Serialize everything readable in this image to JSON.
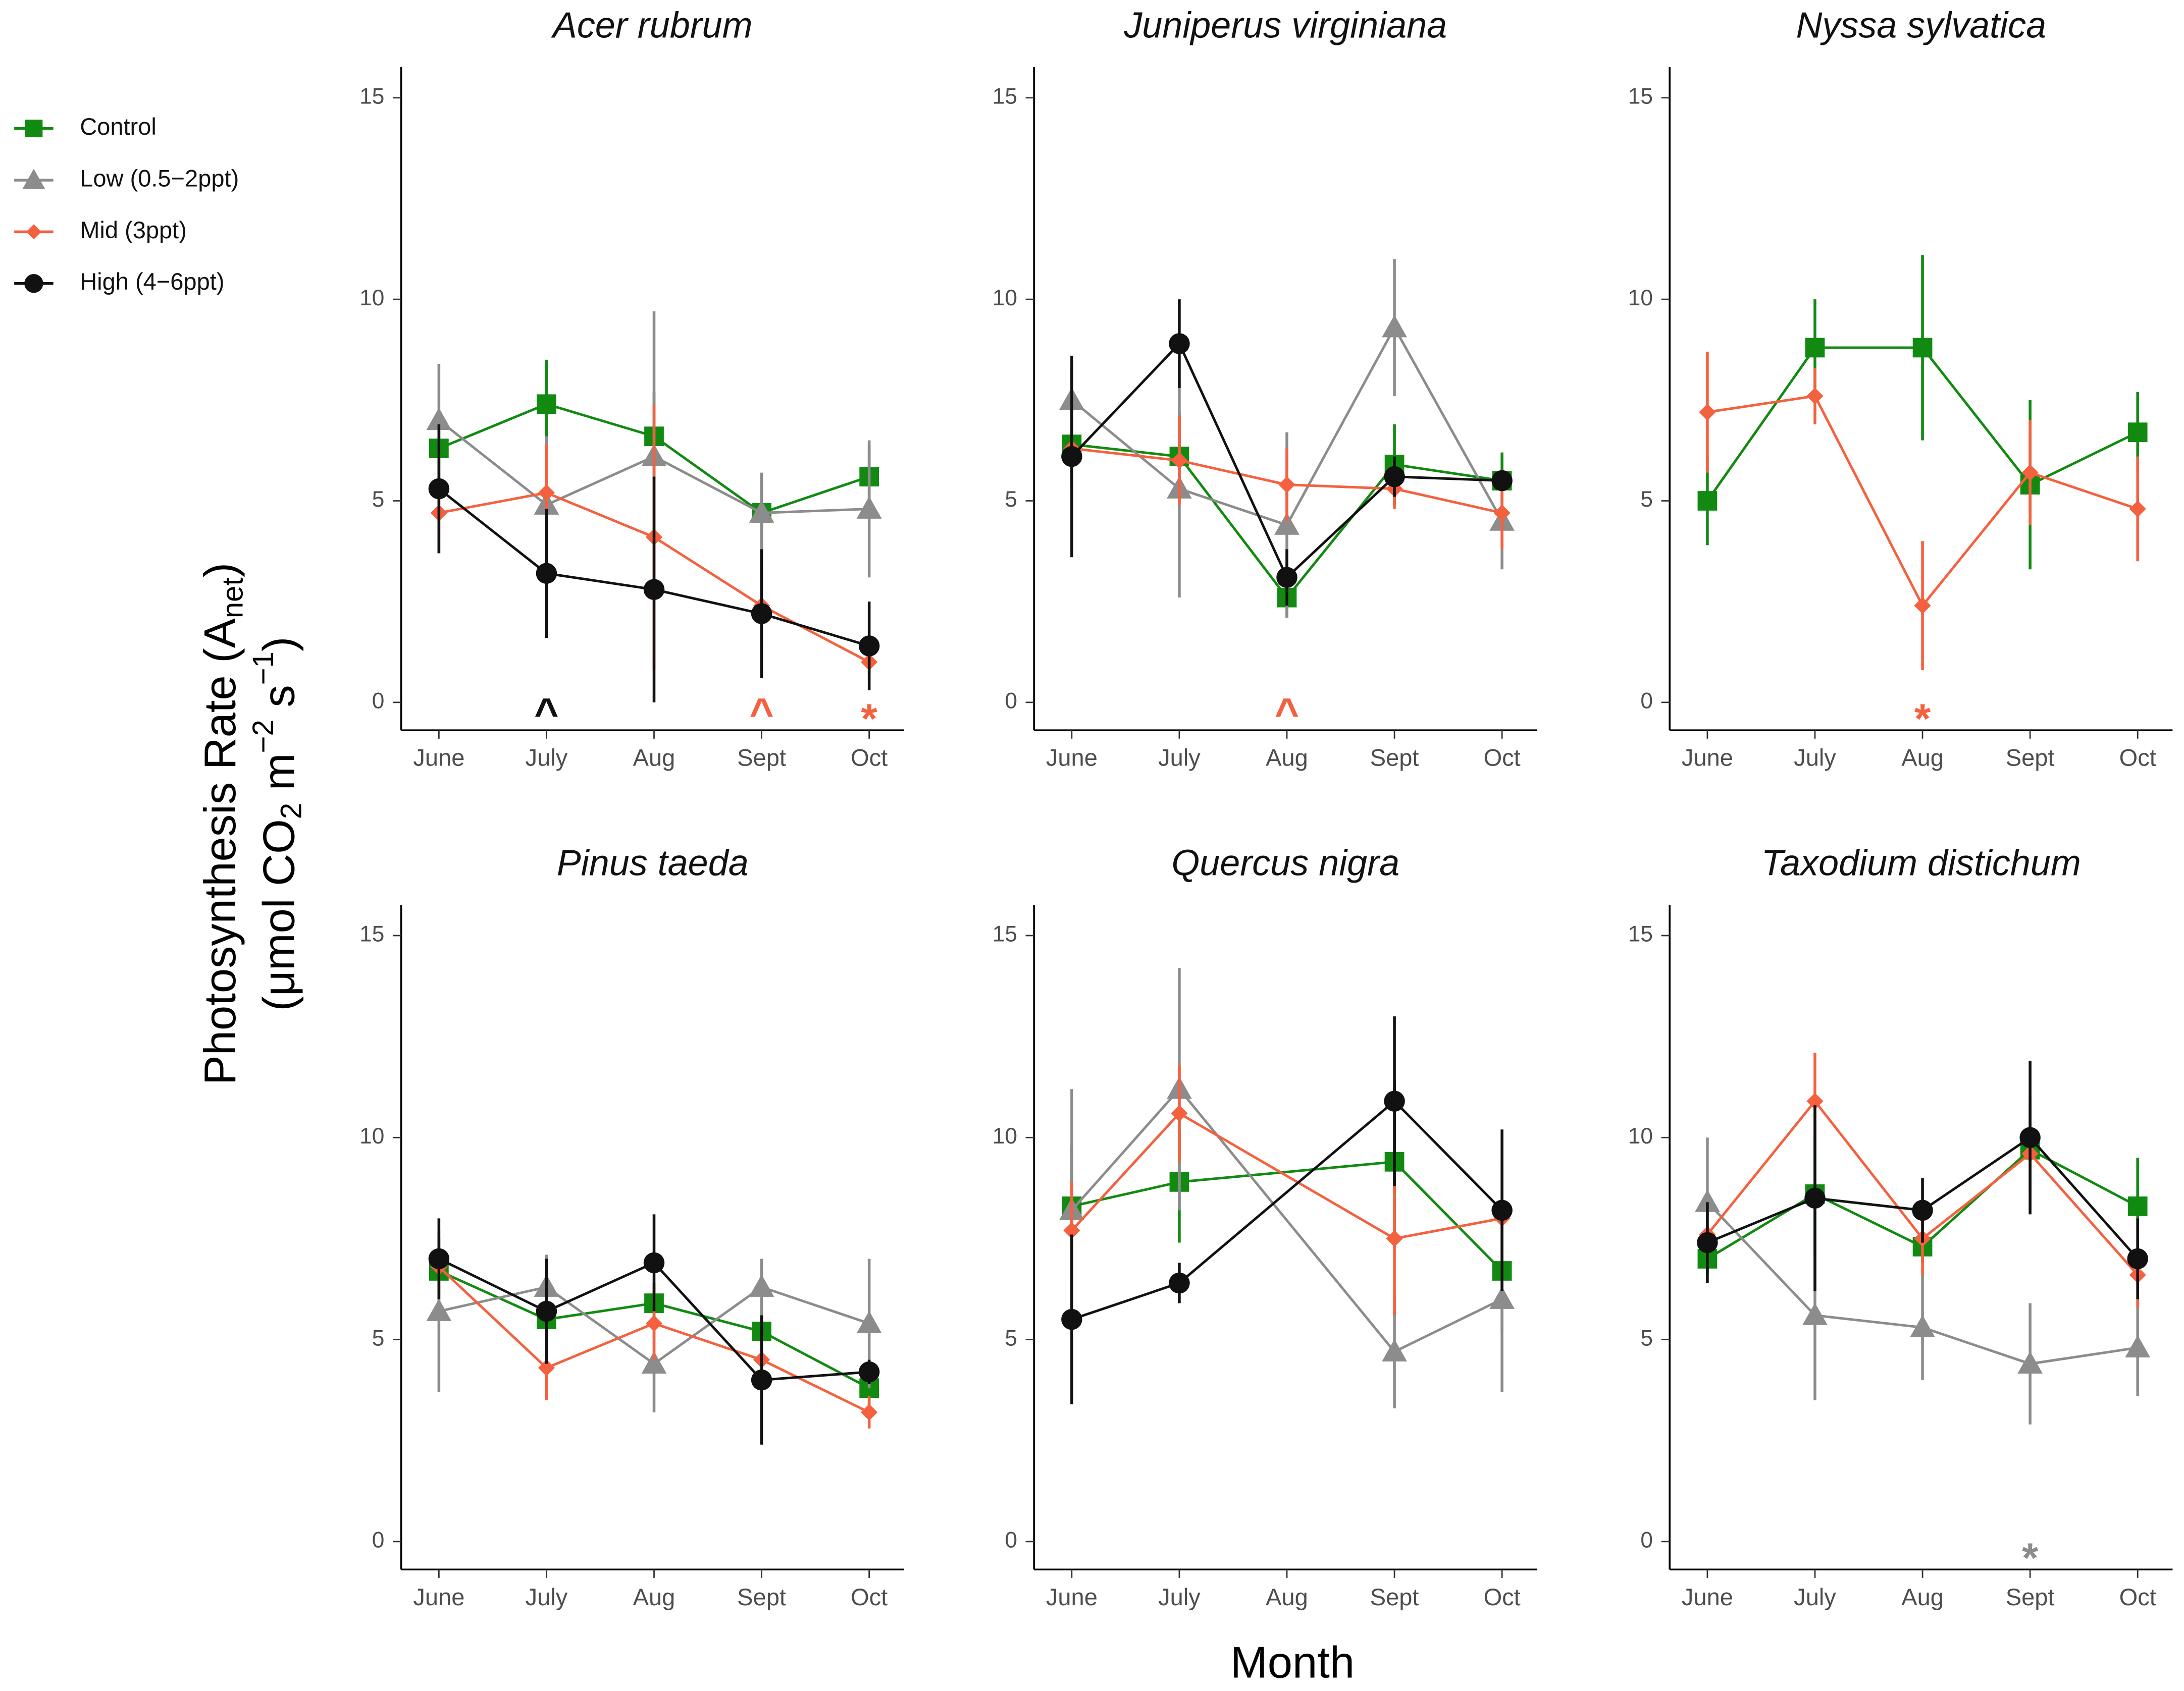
{
  "legend": {
    "series": [
      {
        "name": "Control",
        "color": "#128a12",
        "marker": "square"
      },
      {
        "name": "Low (0.5−2ppt)",
        "color": "#8c8c8c",
        "marker": "triangle"
      },
      {
        "name": "Mid (3ppt)",
        "color": "#f4613f",
        "marker": "diamond"
      },
      {
        "name": "High (4−6ppt)",
        "color": "#111111",
        "marker": "circle"
      }
    ]
  },
  "ylabel": {
    "line1": [
      "Photosynthesis Rate (A",
      "net",
      ")"
    ],
    "line2": [
      "(μmol CO",
      "2",
      " m",
      "−2",
      " s",
      "−1",
      ")"
    ]
  },
  "xlabel": "Month",
  "chart_data": [
    {
      "type": "line",
      "title": "Acer rubrum",
      "categories": [
        "June",
        "July",
        "Aug",
        "Sept",
        "Oct"
      ],
      "ylim": [
        0,
        15
      ],
      "yticks": [
        0,
        5,
        10,
        15
      ],
      "series": [
        {
          "values": [
            6.3,
            7.4,
            6.6,
            4.7,
            5.6
          ],
          "errors": [
            0.9,
            1.1,
            1.1,
            0.9,
            0.8
          ]
        },
        {
          "values": [
            7.0,
            4.9,
            6.1,
            4.7,
            4.8
          ],
          "errors": [
            1.4,
            1.7,
            3.6,
            1.0,
            1.7
          ]
        },
        {
          "values": [
            4.7,
            5.2,
            4.1,
            2.4,
            1.0
          ],
          "errors": [
            1.0,
            1.2,
            3.3,
            0.9,
            0.3
          ]
        },
        {
          "values": [
            5.3,
            3.2,
            2.8,
            2.2,
            1.4
          ],
          "errors": [
            1.6,
            1.6,
            2.8,
            1.6,
            1.1
          ]
        }
      ],
      "annotations": [
        {
          "text": "^",
          "x": "July",
          "color": "#111111"
        },
        {
          "text": "^",
          "x": "Sept",
          "color": "#f4613f"
        },
        {
          "text": "*",
          "x": "Oct",
          "color": "#f4613f"
        }
      ]
    },
    {
      "type": "line",
      "title": "Juniperus virginiana",
      "categories": [
        "June",
        "July",
        "Aug",
        "Sept",
        "Oct"
      ],
      "ylim": [
        0,
        15
      ],
      "yticks": [
        0,
        5,
        10,
        15
      ],
      "series": [
        {
          "values": [
            6.4,
            6.1,
            2.6,
            5.9,
            5.5
          ],
          "errors": [
            1.1,
            1.1,
            0.5,
            1.0,
            0.7
          ]
        },
        {
          "values": [
            7.5,
            5.3,
            4.4,
            9.3,
            4.5
          ],
          "errors": [
            0.8,
            2.7,
            2.3,
            1.7,
            1.2
          ]
        },
        {
          "values": [
            6.3,
            6.0,
            5.4,
            5.3,
            4.7
          ],
          "errors": [
            0.8,
            1.1,
            0.9,
            0.5,
            0.9
          ]
        },
        {
          "values": [
            6.1,
            8.9,
            3.1,
            5.6,
            5.5
          ],
          "errors": [
            2.5,
            1.1,
            0.7,
            0.5,
            0.2
          ]
        }
      ],
      "annotations": [
        {
          "text": "^",
          "x": "Aug",
          "color": "#f4613f"
        }
      ]
    },
    {
      "type": "line",
      "title": "Nyssa sylvatica",
      "categories": [
        "June",
        "July",
        "Aug",
        "Sept",
        "Oct"
      ],
      "ylim": [
        0,
        15
      ],
      "yticks": [
        0,
        5,
        10,
        15
      ],
      "series": [
        {
          "values": [
            5.0,
            8.8,
            8.8,
            5.4,
            6.7
          ],
          "errors": [
            1.1,
            1.2,
            2.3,
            2.1,
            1.0
          ]
        },
        {
          "values": [
            null,
            null,
            null,
            null,
            null
          ],
          "errors": [
            null,
            null,
            null,
            null,
            null
          ]
        },
        {
          "values": [
            7.2,
            7.6,
            2.4,
            5.7,
            4.8
          ],
          "errors": [
            1.5,
            0.7,
            1.6,
            1.3,
            1.3
          ]
        },
        {
          "values": [
            null,
            null,
            null,
            null,
            null
          ],
          "errors": [
            null,
            null,
            null,
            null,
            null
          ]
        }
      ],
      "annotations": [
        {
          "text": "*",
          "x": "Aug",
          "color": "#f4613f"
        }
      ]
    },
    {
      "type": "line",
      "title": "Pinus taeda",
      "categories": [
        "June",
        "July",
        "Aug",
        "Sept",
        "Oct"
      ],
      "ylim": [
        0,
        15
      ],
      "yticks": [
        0,
        5,
        10,
        15
      ],
      "series": [
        {
          "values": [
            6.7,
            5.5,
            5.9,
            5.2,
            3.8
          ],
          "errors": [
            0.8,
            0.7,
            0.5,
            0.5,
            0.6
          ]
        },
        {
          "values": [
            5.7,
            6.3,
            4.4,
            6.3,
            5.4
          ],
          "errors": [
            2.0,
            0.8,
            1.2,
            0.7,
            1.6
          ]
        },
        {
          "values": [
            6.8,
            4.3,
            5.4,
            4.5,
            3.2
          ],
          "errors": [
            0.7,
            0.8,
            0.9,
            0.6,
            0.4
          ]
        },
        {
          "values": [
            7.0,
            5.7,
            6.9,
            4.0,
            4.2
          ],
          "errors": [
            1.0,
            1.3,
            1.2,
            1.6,
            0.3
          ]
        }
      ],
      "annotations": []
    },
    {
      "type": "line",
      "title": "Quercus nigra",
      "categories": [
        "June",
        "July",
        "Aug",
        "Sept",
        "Oct"
      ],
      "ylim": [
        0,
        15
      ],
      "yticks": [
        0,
        5,
        10,
        15
      ],
      "series": [
        {
          "values": [
            8.3,
            8.9,
            null,
            9.4,
            6.7
          ],
          "errors": [
            1.5,
            1.5,
            null,
            2.0,
            1.5
          ]
        },
        {
          "values": [
            8.2,
            11.2,
            null,
            4.7,
            6.0
          ],
          "errors": [
            3.0,
            3.0,
            null,
            1.4,
            2.3
          ]
        },
        {
          "values": [
            7.7,
            10.6,
            null,
            7.5,
            8.0
          ],
          "errors": [
            1.2,
            1.2,
            null,
            1.9,
            1.4
          ]
        },
        {
          "values": [
            5.5,
            6.4,
            null,
            10.9,
            8.2
          ],
          "errors": [
            2.1,
            0.5,
            null,
            2.1,
            2.0
          ]
        }
      ],
      "annotations": []
    },
    {
      "type": "line",
      "title": "Taxodium distichum",
      "categories": [
        "June",
        "July",
        "Aug",
        "Sept",
        "Oct"
      ],
      "ylim": [
        0,
        15
      ],
      "yticks": [
        0,
        5,
        10,
        15
      ],
      "series": [
        {
          "values": [
            7.0,
            8.6,
            7.3,
            9.7,
            8.3
          ],
          "errors": [
            0.4,
            1.5,
            0.4,
            1.1,
            1.2
          ]
        },
        {
          "values": [
            8.4,
            5.6,
            5.3,
            4.4,
            4.8
          ],
          "errors": [
            1.6,
            2.1,
            1.3,
            1.5,
            1.2
          ]
        },
        {
          "values": [
            7.6,
            10.9,
            7.5,
            9.6,
            6.6
          ],
          "errors": [
            0.8,
            1.2,
            0.9,
            1.4,
            0.8
          ]
        },
        {
          "values": [
            7.4,
            8.5,
            8.2,
            10.0,
            7.0
          ],
          "errors": [
            1.0,
            2.3,
            0.8,
            1.9,
            1.0
          ]
        }
      ],
      "annotations": [
        {
          "text": "*",
          "x": "Sept",
          "color": "#8c8c8c"
        }
      ]
    }
  ]
}
